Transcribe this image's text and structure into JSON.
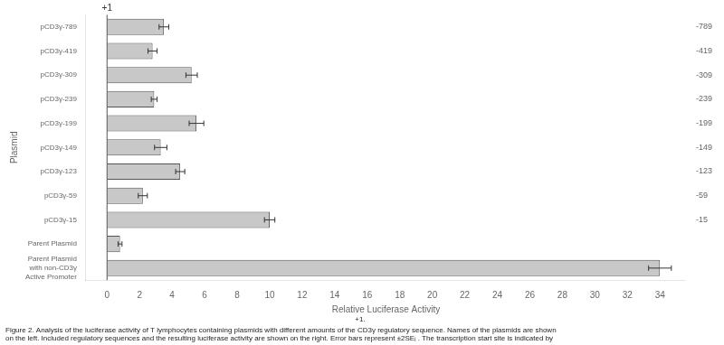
{
  "chart_data": {
    "type": "bar",
    "orientation": "horizontal",
    "xlabel": "Relative Luciferase Activity",
    "ylabel": "Plasmid",
    "categories": [
      "pCD3γ-789",
      "pCD3γ-419",
      "pCD3γ-309",
      "pCD3γ-239",
      "pCD3γ-199",
      "pCD3γ-149",
      "pCD3γ-123",
      "pCD3γ-59",
      "pCD3γ-15",
      "Parent Plasmid",
      "Parent Plasmid\nwith non-CD3γ\nActive Promoter"
    ],
    "position_labels": [
      "-789",
      "-419",
      "-309",
      "-239",
      "-199",
      "-149",
      "-123",
      "-59",
      "-15",
      null,
      null
    ],
    "values": [
      3.5,
      2.8,
      5.2,
      2.9,
      5.5,
      3.3,
      4.5,
      2.2,
      10.0,
      0.8,
      34.0
    ],
    "errors": [
      0.3,
      0.28,
      0.35,
      0.18,
      0.45,
      0.38,
      0.28,
      0.28,
      0.32,
      0.12,
      0.7
    ],
    "color": "#c8c8c8",
    "xlim": [
      -1.3,
      35.6
    ],
    "xticks": [
      0,
      2,
      4,
      6,
      8,
      10,
      12,
      14,
      16,
      18,
      20,
      22,
      24,
      26,
      28,
      30,
      32,
      34
    ],
    "grid": false,
    "annotations": [
      {
        "text": "+1",
        "x": 0
      }
    ],
    "caption": [
      "Figure 2. Analysis of the luciferase activity of T lymphocytes containing plasmids with different amounts of the CD3γ regulatory sequence. Names of the plasmids are shown",
      "on the left. Included regulatory sequences and the resulting luciferase activity are shown on the right. Error bars represent ±2SEᵢ . The transcription start site is indicated by",
      "+1."
    ]
  }
}
